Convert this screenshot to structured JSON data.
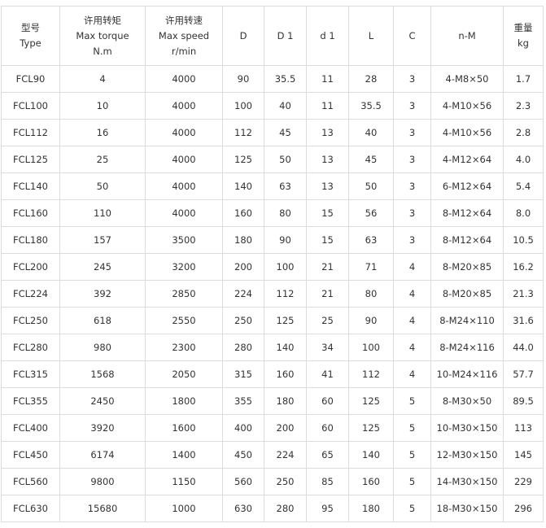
{
  "headers": [
    [
      "型号",
      "Type"
    ],
    [
      "许用转矩",
      "Max torque",
      "N.m"
    ],
    [
      "许用转速",
      "Max speed",
      "r/min"
    ],
    [
      "D"
    ],
    [
      "D 1"
    ],
    [
      "d 1"
    ],
    [
      "L"
    ],
    [
      "C"
    ],
    [
      "n-M"
    ],
    [
      "重量",
      "kg"
    ]
  ],
  "rows": [
    [
      "FCL90",
      "4",
      "4000",
      "90",
      "35.5",
      "11",
      "28",
      "3",
      "4-M8×50",
      "1.7"
    ],
    [
      "FCL100",
      "10",
      "4000",
      "100",
      "40",
      "11",
      "35.5",
      "3",
      "4-M10×56",
      "2.3"
    ],
    [
      "FCL112",
      "16",
      "4000",
      "112",
      "45",
      "13",
      "40",
      "3",
      "4-M10×56",
      "2.8"
    ],
    [
      "FCL125",
      "25",
      "4000",
      "125",
      "50",
      "13",
      "45",
      "3",
      "4-M12×64",
      "4.0"
    ],
    [
      "FCL140",
      "50",
      "4000",
      "140",
      "63",
      "13",
      "50",
      "3",
      "6-M12×64",
      "5.4"
    ],
    [
      "FCL160",
      "110",
      "4000",
      "160",
      "80",
      "15",
      "56",
      "3",
      "8-M12×64",
      "8.0"
    ],
    [
      "FCL180",
      "157",
      "3500",
      "180",
      "90",
      "15",
      "63",
      "3",
      "8-M12×64",
      "10.5"
    ],
    [
      "FCL200",
      "245",
      "3200",
      "200",
      "100",
      "21",
      "71",
      "4",
      "8-M20×85",
      "16.2"
    ],
    [
      "FCL224",
      "392",
      "2850",
      "224",
      "112",
      "21",
      "80",
      "4",
      "8-M20×85",
      "21.3"
    ],
    [
      "FCL250",
      "618",
      "2550",
      "250",
      "125",
      "25",
      "90",
      "4",
      "8-M24×110",
      "31.6"
    ],
    [
      "FCL280",
      "980",
      "2300",
      "280",
      "140",
      "34",
      "100",
      "4",
      "8-M24×116",
      "44.0"
    ],
    [
      "FCL315",
      "1568",
      "2050",
      "315",
      "160",
      "41",
      "112",
      "4",
      "10-M24×116",
      "57.7"
    ],
    [
      "FCL355",
      "2450",
      "1800",
      "355",
      "180",
      "60",
      "125",
      "5",
      "8-M30×50",
      "89.5"
    ],
    [
      "FCL400",
      "3920",
      "1600",
      "400",
      "200",
      "60",
      "125",
      "5",
      "10-M30×150",
      "113"
    ],
    [
      "FCL450",
      "6174",
      "1400",
      "450",
      "224",
      "65",
      "140",
      "5",
      "12-M30×150",
      "145"
    ],
    [
      "FCL560",
      "9800",
      "1150",
      "560",
      "250",
      "85",
      "160",
      "5",
      "14-M30×150",
      "229"
    ],
    [
      "FCL630",
      "15680",
      "1000",
      "630",
      "280",
      "95",
      "180",
      "5",
      "18-M30×150",
      "296"
    ]
  ]
}
